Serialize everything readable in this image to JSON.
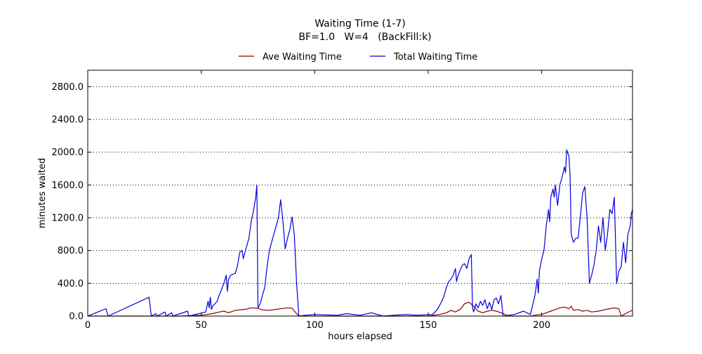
{
  "chart_data": {
    "type": "line",
    "title": "Waiting Time (1-7)",
    "subtitle": "BF=1.0   W=4   (BackFill:k)",
    "xlabel": "hours elapsed",
    "ylabel": "minutes waited",
    "xlim": [
      0,
      240
    ],
    "ylim": [
      0,
      3000
    ],
    "xticks": [
      0,
      50,
      100,
      150,
      200
    ],
    "yticks": [
      "0.0",
      "400.0",
      "800.0",
      "1200.0",
      "1600.0",
      "2000.0",
      "2400.0",
      "2800.0"
    ],
    "grid": "horizontal dotted",
    "legend_position": "top-center",
    "series": [
      {
        "name": "Ave Waiting Time",
        "color": "#8b0000",
        "points": [
          [
            0,
            0
          ],
          [
            27,
            0
          ],
          [
            40,
            0
          ],
          [
            50,
            10
          ],
          [
            55,
            30
          ],
          [
            58,
            50
          ],
          [
            60,
            60
          ],
          [
            62,
            40
          ],
          [
            65,
            70
          ],
          [
            70,
            85
          ],
          [
            72,
            100
          ],
          [
            75,
            95
          ],
          [
            77,
            75
          ],
          [
            80,
            70
          ],
          [
            85,
            90
          ],
          [
            88,
            100
          ],
          [
            90,
            95
          ],
          [
            92,
            30
          ],
          [
            93,
            0
          ],
          [
            150,
            0
          ],
          [
            155,
            20
          ],
          [
            158,
            40
          ],
          [
            160,
            70
          ],
          [
            162,
            50
          ],
          [
            164,
            80
          ],
          [
            166,
            150
          ],
          [
            168,
            170
          ],
          [
            170,
            120
          ],
          [
            172,
            60
          ],
          [
            174,
            40
          ],
          [
            176,
            60
          ],
          [
            178,
            70
          ],
          [
            180,
            60
          ],
          [
            182,
            40
          ],
          [
            184,
            20
          ],
          [
            185,
            0
          ],
          [
            195,
            0
          ],
          [
            198,
            15
          ],
          [
            200,
            20
          ],
          [
            202,
            40
          ],
          [
            204,
            60
          ],
          [
            206,
            80
          ],
          [
            208,
            100
          ],
          [
            210,
            110
          ],
          [
            212,
            90
          ],
          [
            213,
            120
          ],
          [
            214,
            70
          ],
          [
            216,
            80
          ],
          [
            218,
            60
          ],
          [
            220,
            70
          ],
          [
            222,
            50
          ],
          [
            225,
            60
          ],
          [
            228,
            80
          ],
          [
            230,
            90
          ],
          [
            232,
            100
          ],
          [
            234,
            90
          ],
          [
            235,
            0
          ],
          [
            237,
            30
          ],
          [
            239,
            60
          ],
          [
            240,
            70
          ]
        ]
      },
      {
        "name": "Total Waiting Time",
        "color": "#0000dd",
        "points": [
          [
            0,
            0
          ],
          [
            8,
            90
          ],
          [
            9,
            0
          ],
          [
            27,
            230
          ],
          [
            28,
            0
          ],
          [
            30,
            30
          ],
          [
            30.5,
            0
          ],
          [
            34,
            50
          ],
          [
            34.5,
            0
          ],
          [
            37,
            40
          ],
          [
            37.5,
            0
          ],
          [
            44,
            60
          ],
          [
            44.5,
            0
          ],
          [
            52,
            50
          ],
          [
            53,
            180
          ],
          [
            53.5,
            100
          ],
          [
            54,
            230
          ],
          [
            54.5,
            80
          ],
          [
            55,
            120
          ],
          [
            56,
            150
          ],
          [
            57,
            180
          ],
          [
            58,
            260
          ],
          [
            59,
            330
          ],
          [
            60,
            400
          ],
          [
            61,
            500
          ],
          [
            61.5,
            300
          ],
          [
            62,
            450
          ],
          [
            63,
            500
          ],
          [
            64,
            510
          ],
          [
            65,
            520
          ],
          [
            66,
            620
          ],
          [
            67,
            780
          ],
          [
            68,
            800
          ],
          [
            68.5,
            700
          ],
          [
            69,
            750
          ],
          [
            70,
            850
          ],
          [
            71,
            950
          ],
          [
            72,
            1150
          ],
          [
            73,
            1280
          ],
          [
            74,
            1450
          ],
          [
            74.5,
            1600
          ],
          [
            75,
            100
          ],
          [
            76,
            150
          ],
          [
            77,
            260
          ],
          [
            78,
            350
          ],
          [
            79,
            600
          ],
          [
            80,
            800
          ],
          [
            81,
            900
          ],
          [
            82,
            1000
          ],
          [
            83,
            1100
          ],
          [
            84,
            1200
          ],
          [
            85,
            1420
          ],
          [
            86,
            1150
          ],
          [
            87,
            820
          ],
          [
            88,
            950
          ],
          [
            89,
            1050
          ],
          [
            90,
            1210
          ],
          [
            91,
            1000
          ],
          [
            92,
            400
          ],
          [
            93,
            0
          ],
          [
            96,
            10
          ],
          [
            100,
            20
          ],
          [
            110,
            10
          ],
          [
            114,
            30
          ],
          [
            120,
            10
          ],
          [
            125,
            40
          ],
          [
            130,
            0
          ],
          [
            140,
            20
          ],
          [
            145,
            10
          ],
          [
            152,
            20
          ],
          [
            154,
            80
          ],
          [
            156,
            180
          ],
          [
            157,
            250
          ],
          [
            158,
            350
          ],
          [
            159,
            420
          ],
          [
            160,
            450
          ],
          [
            161,
            500
          ],
          [
            162,
            580
          ],
          [
            162.5,
            420
          ],
          [
            163,
            480
          ],
          [
            164,
            560
          ],
          [
            165,
            620
          ],
          [
            166,
            640
          ],
          [
            167,
            580
          ],
          [
            168,
            700
          ],
          [
            169,
            750
          ],
          [
            169.5,
            100
          ],
          [
            170,
            50
          ],
          [
            171,
            150
          ],
          [
            172,
            100
          ],
          [
            173,
            180
          ],
          [
            174,
            130
          ],
          [
            175,
            200
          ],
          [
            176,
            90
          ],
          [
            177,
            170
          ],
          [
            178,
            80
          ],
          [
            179,
            200
          ],
          [
            180,
            220
          ],
          [
            181,
            150
          ],
          [
            182,
            250
          ],
          [
            183,
            0
          ],
          [
            188,
            20
          ],
          [
            192,
            60
          ],
          [
            195,
            20
          ],
          [
            197,
            250
          ],
          [
            198,
            450
          ],
          [
            198.5,
            280
          ],
          [
            199,
            550
          ],
          [
            200,
            700
          ],
          [
            201,
            800
          ],
          [
            202,
            1100
          ],
          [
            203,
            1300
          ],
          [
            203.5,
            1150
          ],
          [
            204,
            1450
          ],
          [
            205,
            1550
          ],
          [
            205.5,
            1450
          ],
          [
            206,
            1600
          ],
          [
            207,
            1350
          ],
          [
            208,
            1600
          ],
          [
            209,
            1700
          ],
          [
            210,
            1820
          ],
          [
            210.5,
            1750
          ],
          [
            211,
            2030
          ],
          [
            212,
            1950
          ],
          [
            212.5,
            1700
          ],
          [
            213,
            1000
          ],
          [
            214,
            900
          ],
          [
            215,
            950
          ],
          [
            216,
            950
          ],
          [
            217,
            1200
          ],
          [
            218,
            1500
          ],
          [
            219,
            1580
          ],
          [
            220,
            1200
          ],
          [
            221,
            400
          ],
          [
            222,
            500
          ],
          [
            223,
            620
          ],
          [
            224,
            800
          ],
          [
            225,
            1100
          ],
          [
            226,
            900
          ],
          [
            227,
            1200
          ],
          [
            228,
            800
          ],
          [
            229,
            1000
          ],
          [
            230,
            1300
          ],
          [
            231,
            1250
          ],
          [
            232,
            1450
          ],
          [
            233,
            400
          ],
          [
            234,
            550
          ],
          [
            235,
            600
          ],
          [
            236,
            900
          ],
          [
            237,
            650
          ],
          [
            238,
            1000
          ],
          [
            239,
            1100
          ],
          [
            239.5,
            1250
          ],
          [
            240,
            1300
          ]
        ]
      }
    ]
  }
}
